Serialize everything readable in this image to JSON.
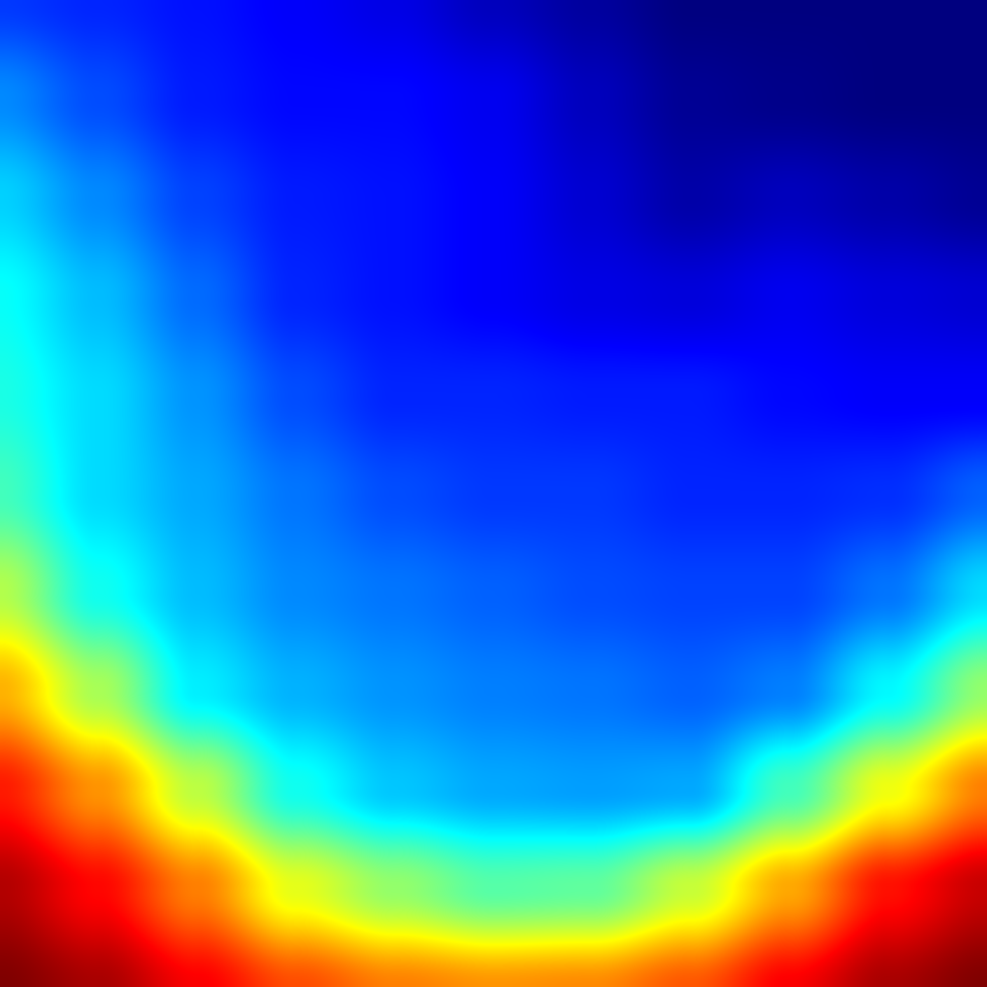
{
  "chart_data": {
    "type": "heatmap",
    "colormap": "jet",
    "colormap_stops": [
      "#00007f",
      "#0000ff",
      "#007fff",
      "#00ffff",
      "#7fff7f",
      "#ffff00",
      "#ff7f00",
      "#ff0000",
      "#7f0000"
    ],
    "value_range": [
      0,
      1
    ],
    "rows": 11,
    "cols": 11,
    "values": [
      [
        0.18,
        0.16,
        0.14,
        0.12,
        0.1,
        0.06,
        0.03,
        0.0,
        0.0,
        0.0,
        0.0
      ],
      [
        0.26,
        0.2,
        0.15,
        0.13,
        0.13,
        0.11,
        0.06,
        0.02,
        0.01,
        0.0,
        0.0
      ],
      [
        0.33,
        0.26,
        0.19,
        0.15,
        0.14,
        0.12,
        0.08,
        0.04,
        0.06,
        0.04,
        0.02
      ],
      [
        0.38,
        0.31,
        0.23,
        0.16,
        0.14,
        0.12,
        0.1,
        0.09,
        0.11,
        0.09,
        0.08
      ],
      [
        0.4,
        0.34,
        0.27,
        0.2,
        0.16,
        0.16,
        0.15,
        0.15,
        0.13,
        0.12,
        0.12
      ],
      [
        0.44,
        0.34,
        0.29,
        0.24,
        0.2,
        0.18,
        0.18,
        0.16,
        0.16,
        0.17,
        0.22
      ],
      [
        0.55,
        0.39,
        0.31,
        0.26,
        0.24,
        0.22,
        0.2,
        0.19,
        0.19,
        0.24,
        0.34
      ],
      [
        0.7,
        0.54,
        0.36,
        0.3,
        0.27,
        0.25,
        0.24,
        0.22,
        0.25,
        0.37,
        0.52
      ],
      [
        0.85,
        0.73,
        0.56,
        0.39,
        0.32,
        0.29,
        0.28,
        0.29,
        0.44,
        0.61,
        0.75
      ],
      [
        0.95,
        0.87,
        0.75,
        0.6,
        0.52,
        0.46,
        0.47,
        0.57,
        0.71,
        0.86,
        0.93
      ],
      [
        1.0,
        0.96,
        0.88,
        0.8,
        0.75,
        0.73,
        0.74,
        0.79,
        0.88,
        0.96,
        1.0
      ]
    ]
  }
}
